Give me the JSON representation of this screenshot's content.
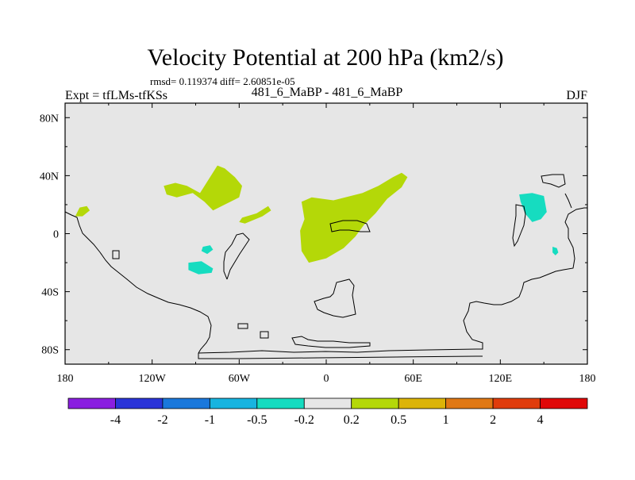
{
  "chart_data": {
    "type": "heatmap",
    "title": "Velocity Potential at 200 hPa (km2/s)",
    "stats_text": "rmsd= 0.119374 diff= 2.60851e-05",
    "left_label": "Expt = tfLMs-tfKSs",
    "center_label": "481_6_MaBP - 481_6_MaBP",
    "right_label": "DJF",
    "x_axis": {
      "range": [
        -180,
        180
      ],
      "ticks": [
        -180,
        -120,
        -60,
        0,
        60,
        120,
        180
      ],
      "tick_labels": [
        "180",
        "120W",
        "60W",
        "0",
        "60E",
        "120E",
        "180"
      ]
    },
    "y_axis": {
      "range": [
        -90,
        90
      ],
      "ticks": [
        80,
        40,
        0,
        -40,
        -80
      ],
      "tick_labels": [
        "80N",
        "40N",
        "0",
        "40S",
        "80S"
      ]
    },
    "colorbar": {
      "colors": [
        "#8a1ee0",
        "#2a34d8",
        "#1a78dc",
        "#18b4e0",
        "#16dcc0",
        "#e6e6e6",
        "#b4d808",
        "#dcb408",
        "#e07814",
        "#e03c0c",
        "#e00808"
      ],
      "boundaries": [
        "-4",
        "-2",
        "-1",
        "-0.5",
        "-0.2",
        "0.2",
        "0.5",
        "1",
        "2",
        "4"
      ]
    },
    "background_color": "#e6e6e6",
    "positive_regions": [
      {
        "name": "north-pacific-west",
        "color": "#b4d808",
        "polygon": [
          [
            -170,
            18
          ],
          [
            -165,
            19
          ],
          [
            -163,
            16
          ],
          [
            -168,
            12
          ],
          [
            -173,
            12
          ]
        ]
      },
      {
        "name": "north-pacific-band",
        "color": "#b4d808",
        "polygon": [
          [
            -112,
            33
          ],
          [
            -104,
            35
          ],
          [
            -96,
            33
          ],
          [
            -87,
            28
          ],
          [
            -75,
            47
          ],
          [
            -70,
            45
          ],
          [
            -63,
            39
          ],
          [
            -58,
            33
          ],
          [
            -60,
            25
          ],
          [
            -70,
            20
          ],
          [
            -78,
            16
          ],
          [
            -84,
            22
          ],
          [
            -92,
            28
          ],
          [
            -103,
            25
          ],
          [
            -110,
            27
          ]
        ]
      },
      {
        "name": "caribbean",
        "color": "#b4d808",
        "polygon": [
          [
            -58,
            11
          ],
          [
            -48,
            14
          ],
          [
            -40,
            19
          ],
          [
            -38,
            16
          ],
          [
            -44,
            12
          ],
          [
            -56,
            7
          ],
          [
            -60,
            8
          ]
        ]
      },
      {
        "name": "africa-asia",
        "color": "#b4d808",
        "polygon": [
          [
            -17,
            22
          ],
          [
            -10,
            25
          ],
          [
            5,
            23
          ],
          [
            25,
            28
          ],
          [
            36,
            33
          ],
          [
            46,
            39
          ],
          [
            52,
            42
          ],
          [
            56,
            39
          ],
          [
            52,
            32
          ],
          [
            42,
            24
          ],
          [
            34,
            14
          ],
          [
            26,
            6
          ],
          [
            20,
            -2
          ],
          [
            12,
            -10
          ],
          [
            0,
            -17
          ],
          [
            -12,
            -20
          ],
          [
            -17,
            -12
          ],
          [
            -18,
            2
          ],
          [
            -15,
            10
          ]
        ]
      },
      {
        "name": "dateline-positive-blob",
        "color": "#b4d808",
        "polygon": []
      }
    ],
    "negative_regions": [
      {
        "name": "south-america-small",
        "color": "#16dcc0",
        "polygon": [
          [
            -85,
            -9
          ],
          [
            -80,
            -8
          ],
          [
            -78,
            -11
          ],
          [
            -82,
            -14
          ],
          [
            -86,
            -12
          ]
        ]
      },
      {
        "name": "south-america",
        "color": "#16dcc0",
        "polygon": [
          [
            -95,
            -20
          ],
          [
            -86,
            -19
          ],
          [
            -78,
            -24
          ],
          [
            -79,
            -27
          ],
          [
            -88,
            -28
          ],
          [
            -95,
            -25
          ]
        ]
      },
      {
        "name": "western-pacific",
        "color": "#16dcc0",
        "polygon": [
          [
            133,
            27
          ],
          [
            142,
            28
          ],
          [
            150,
            26
          ],
          [
            152,
            15
          ],
          [
            148,
            10
          ],
          [
            142,
            8
          ],
          [
            137,
            14
          ],
          [
            134,
            22
          ]
        ]
      },
      {
        "name": "solomon",
        "color": "#16dcc0",
        "polygon": [
          [
            156,
            -9
          ],
          [
            159,
            -10
          ],
          [
            160,
            -13
          ],
          [
            158,
            -15
          ],
          [
            156,
            -13
          ]
        ]
      }
    ]
  }
}
